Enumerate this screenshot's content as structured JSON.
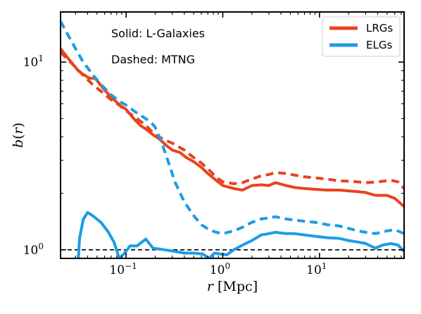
{
  "chart_data": {
    "type": "line",
    "xlabel": "r [Mpc]",
    "ylabel": "b(r)",
    "xscale": "log",
    "yscale": "log",
    "xlim": [
      0.021,
      75
    ],
    "ylim": [
      0.9,
      18.5
    ],
    "x_ticks": [
      {
        "value": 0.1,
        "base": "10",
        "exp": "−1"
      },
      {
        "value": 1,
        "base": "10",
        "exp": "0"
      },
      {
        "value": 10,
        "base": "10",
        "exp": "1"
      }
    ],
    "y_ticks": [
      {
        "value": 1,
        "base": "10",
        "exp": "0"
      },
      {
        "value": 10,
        "base": "10",
        "exp": "1"
      }
    ],
    "annotations": [
      "Solid: L-Galaxies",
      "Dashed: MTNG"
    ],
    "legend": {
      "position": "top-right",
      "entries": [
        {
          "label": "LRGs",
          "color": "#e8431e"
        },
        {
          "label": "ELGs",
          "color": "#1c9ce6"
        }
      ]
    },
    "reference_line": {
      "y": 1.0,
      "style": "dashed",
      "color": "#000000"
    },
    "series": [
      {
        "name": "LRGs",
        "dataset": "L-Galaxies",
        "style": "solid",
        "color": "#e8431e",
        "points": [
          [
            0.021,
            11.8
          ],
          [
            0.024,
            10.8
          ],
          [
            0.028,
            9.8
          ],
          [
            0.032,
            9.0
          ],
          [
            0.036,
            8.6
          ],
          [
            0.042,
            8.2
          ],
          [
            0.048,
            8.2
          ],
          [
            0.055,
            7.5
          ],
          [
            0.063,
            6.9
          ],
          [
            0.075,
            6.3
          ],
          [
            0.09,
            5.8
          ],
          [
            0.1,
            5.6
          ],
          [
            0.12,
            5.0
          ],
          [
            0.14,
            4.6
          ],
          [
            0.16,
            4.4
          ],
          [
            0.19,
            4.1
          ],
          [
            0.22,
            3.9
          ],
          [
            0.26,
            3.6
          ],
          [
            0.3,
            3.4
          ],
          [
            0.36,
            3.3
          ],
          [
            0.42,
            3.1
          ],
          [
            0.5,
            2.95
          ],
          [
            0.6,
            2.75
          ],
          [
            0.7,
            2.55
          ],
          [
            0.85,
            2.35
          ],
          [
            1.0,
            2.2
          ],
          [
            1.3,
            2.12
          ],
          [
            1.6,
            2.08
          ],
          [
            2.0,
            2.2
          ],
          [
            2.5,
            2.22
          ],
          [
            3.0,
            2.2
          ],
          [
            3.5,
            2.28
          ],
          [
            4.5,
            2.2
          ],
          [
            5.5,
            2.15
          ],
          [
            7.0,
            2.12
          ],
          [
            9.0,
            2.1
          ],
          [
            12,
            2.08
          ],
          [
            16,
            2.08
          ],
          [
            20,
            2.06
          ],
          [
            25,
            2.04
          ],
          [
            30,
            2.02
          ],
          [
            38,
            1.95
          ],
          [
            50,
            1.95
          ],
          [
            60,
            1.88
          ],
          [
            75,
            1.7
          ]
        ]
      },
      {
        "name": "LRGs",
        "dataset": "MTNG",
        "style": "dashed",
        "color": "#e8431e",
        "points": [
          [
            0.021,
            11.3
          ],
          [
            0.025,
            10.3
          ],
          [
            0.03,
            9.4
          ],
          [
            0.036,
            8.5
          ],
          [
            0.045,
            7.6
          ],
          [
            0.055,
            7.0
          ],
          [
            0.07,
            6.3
          ],
          [
            0.085,
            5.9
          ],
          [
            0.1,
            5.5
          ],
          [
            0.13,
            5.0
          ],
          [
            0.16,
            4.6
          ],
          [
            0.2,
            4.1
          ],
          [
            0.25,
            3.85
          ],
          [
            0.3,
            3.7
          ],
          [
            0.4,
            3.4
          ],
          [
            0.5,
            3.1
          ],
          [
            0.6,
            2.9
          ],
          [
            0.7,
            2.7
          ],
          [
            0.85,
            2.45
          ],
          [
            1.0,
            2.3
          ],
          [
            1.3,
            2.25
          ],
          [
            1.6,
            2.28
          ],
          [
            2.0,
            2.38
          ],
          [
            2.5,
            2.48
          ],
          [
            3.0,
            2.52
          ],
          [
            3.5,
            2.58
          ],
          [
            4.5,
            2.55
          ],
          [
            5.5,
            2.5
          ],
          [
            7.0,
            2.45
          ],
          [
            9.0,
            2.42
          ],
          [
            12,
            2.38
          ],
          [
            16,
            2.33
          ],
          [
            20,
            2.32
          ],
          [
            25,
            2.3
          ],
          [
            30,
            2.28
          ],
          [
            40,
            2.3
          ],
          [
            55,
            2.35
          ],
          [
            65,
            2.3
          ],
          [
            75,
            2.12
          ]
        ]
      },
      {
        "name": "ELGs",
        "dataset": "L-Galaxies",
        "style": "solid",
        "color": "#1c9ce6",
        "points": [
          [
            0.032,
            0.88
          ],
          [
            0.033,
            1.15
          ],
          [
            0.036,
            1.45
          ],
          [
            0.04,
            1.58
          ],
          [
            0.045,
            1.52
          ],
          [
            0.055,
            1.4
          ],
          [
            0.065,
            1.25
          ],
          [
            0.075,
            1.1
          ],
          [
            0.085,
            0.9
          ],
          [
            0.095,
            0.95
          ],
          [
            0.11,
            1.05
          ],
          [
            0.13,
            1.05
          ],
          [
            0.16,
            1.14
          ],
          [
            0.19,
            1.02
          ],
          [
            0.25,
            1.0
          ],
          [
            0.32,
            0.98
          ],
          [
            0.4,
            0.96
          ],
          [
            0.5,
            0.96
          ],
          [
            0.62,
            0.95
          ],
          [
            0.72,
            0.9
          ],
          [
            0.82,
            0.96
          ],
          [
            0.95,
            0.95
          ],
          [
            1.1,
            0.94
          ],
          [
            1.3,
            1.0
          ],
          [
            1.6,
            1.06
          ],
          [
            2.0,
            1.12
          ],
          [
            2.5,
            1.2
          ],
          [
            3.0,
            1.22
          ],
          [
            3.5,
            1.24
          ],
          [
            4.5,
            1.22
          ],
          [
            5.5,
            1.22
          ],
          [
            7.0,
            1.2
          ],
          [
            9.0,
            1.18
          ],
          [
            12,
            1.16
          ],
          [
            16,
            1.15
          ],
          [
            20,
            1.12
          ],
          [
            25,
            1.1
          ],
          [
            30,
            1.08
          ],
          [
            38,
            1.02
          ],
          [
            45,
            1.06
          ],
          [
            55,
            1.08
          ],
          [
            65,
            1.06
          ],
          [
            75,
            0.98
          ]
        ]
      },
      {
        "name": "ELGs",
        "dataset": "MTNG",
        "style": "dashed",
        "color": "#1c9ce6",
        "points": [
          [
            0.021,
            16.5
          ],
          [
            0.025,
            14.0
          ],
          [
            0.03,
            11.8
          ],
          [
            0.036,
            10.0
          ],
          [
            0.045,
            8.6
          ],
          [
            0.055,
            7.6
          ],
          [
            0.07,
            6.7
          ],
          [
            0.085,
            6.2
          ],
          [
            0.1,
            5.9
          ],
          [
            0.12,
            5.5
          ],
          [
            0.15,
            5.1
          ],
          [
            0.18,
            4.8
          ],
          [
            0.2,
            4.5
          ],
          [
            0.23,
            3.8
          ],
          [
            0.27,
            3.0
          ],
          [
            0.32,
            2.3
          ],
          [
            0.4,
            1.8
          ],
          [
            0.5,
            1.52
          ],
          [
            0.6,
            1.36
          ],
          [
            0.72,
            1.28
          ],
          [
            0.85,
            1.24
          ],
          [
            1.0,
            1.22
          ],
          [
            1.3,
            1.26
          ],
          [
            1.6,
            1.32
          ],
          [
            2.0,
            1.4
          ],
          [
            2.5,
            1.46
          ],
          [
            3.0,
            1.48
          ],
          [
            3.5,
            1.5
          ],
          [
            4.5,
            1.46
          ],
          [
            5.5,
            1.44
          ],
          [
            7.0,
            1.42
          ],
          [
            9.0,
            1.4
          ],
          [
            12,
            1.36
          ],
          [
            16,
            1.34
          ],
          [
            20,
            1.3
          ],
          [
            25,
            1.26
          ],
          [
            30,
            1.24
          ],
          [
            38,
            1.22
          ],
          [
            50,
            1.26
          ],
          [
            60,
            1.28
          ],
          [
            75,
            1.22
          ]
        ]
      }
    ]
  }
}
